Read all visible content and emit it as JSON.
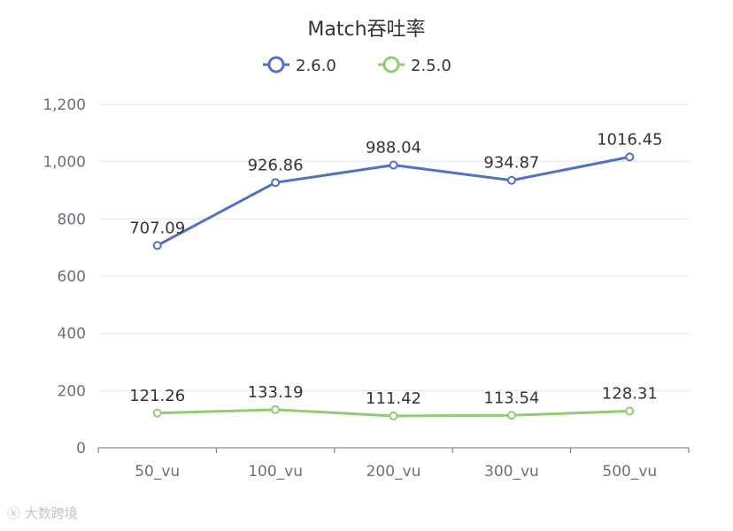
{
  "chart_data": {
    "type": "line",
    "title": "Match吞吐率",
    "categories": [
      "50_vu",
      "100_vu",
      "200_vu",
      "300_vu",
      "500_vu"
    ],
    "series": [
      {
        "name": "2.6.0",
        "color": "#5470c6",
        "values": [
          707.09,
          926.86,
          988.04,
          934.87,
          1016.45
        ]
      },
      {
        "name": "2.5.0",
        "color": "#91cc75",
        "values": [
          121.26,
          133.19,
          111.42,
          113.54,
          128.31
        ]
      }
    ],
    "ylim": [
      0,
      1200
    ],
    "yticks": [
      "0",
      "200",
      "400",
      "600",
      "800",
      "1,000",
      "1,200"
    ],
    "grid": true,
    "legend_position": "top-center"
  },
  "watermark": {
    "text": "大数跨境",
    "icon": "k-logo-icon"
  }
}
